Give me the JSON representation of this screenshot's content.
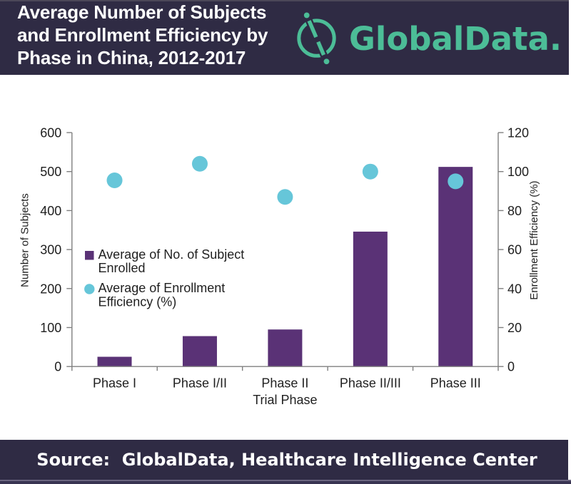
{
  "header": {
    "title_lines": [
      "Average Number of Subjects",
      "and Enrollment Efficiency by",
      "Phase in China, 2012-2017"
    ],
    "logo_text": "GlobalData."
  },
  "chart_data": {
    "type": "bar",
    "subtype": "combo-bar-scatter",
    "categories": [
      "Phase I",
      "Phase I/II",
      "Phase II",
      "Phase II/III",
      "Phase III"
    ],
    "series": [
      {
        "name": "Average of No. of Subject Enrolled",
        "type": "bar",
        "axis": "left",
        "values": [
          25,
          78,
          95,
          346,
          512
        ]
      },
      {
        "name": "Average of Enrollment Efficiency (%)",
        "type": "scatter",
        "axis": "right",
        "values": [
          95.5,
          104,
          87,
          100,
          95
        ]
      }
    ],
    "title": "Average Number of Subjects and Enrollment Efficiency by Phase in China, 2012-2017",
    "xlabel": "Trial Phase",
    "ylabel_left": "Number of Subjects",
    "ylabel_right": "Enrollment Efficiency (%)",
    "ylim_left": [
      0,
      600
    ],
    "ytick_step_left": 100,
    "yticks_left": [
      0,
      100,
      200,
      300,
      400,
      500,
      600
    ],
    "ylim_right": [
      0,
      120
    ],
    "ytick_step_right": 20,
    "yticks_right": [
      0,
      20,
      40,
      60,
      80,
      100,
      120
    ],
    "grid": false,
    "legend_position": "inside-left",
    "legend": [
      {
        "marker": "square",
        "lines": [
          "Average of No. of Subject",
          "Enrolled"
        ]
      },
      {
        "marker": "circle",
        "lines": [
          "Average of Enrollment",
          "Efficiency (%)"
        ]
      }
    ]
  },
  "footer": {
    "source_text": "Source:  GlobalData, Healthcare Intelligence Center"
  },
  "colors": {
    "band_bg": "#2f2b44",
    "logo_teal": "#4cbd97",
    "bar_purple": "#5a3276",
    "dot_teal": "#66c6d9",
    "axis_gray": "#7f7f7f",
    "text_dark": "#1f1f1f",
    "text_white": "#ffffff"
  }
}
